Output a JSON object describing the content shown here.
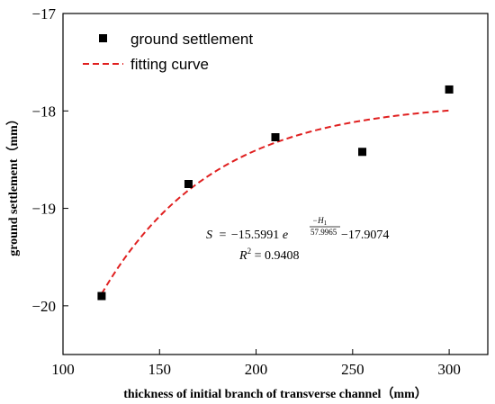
{
  "chart_data": {
    "type": "scatter",
    "xlabel": "thickness of initial branch of transverse channel（mm）",
    "ylabel": "ground settlement（mm）",
    "xlim": [
      100,
      320
    ],
    "ylim": [
      -20.5,
      -17
    ],
    "x_ticks": [
      "100",
      "150",
      "200",
      "250",
      "300"
    ],
    "y_ticks": [
      "−17",
      "−18",
      "−19",
      "−20"
    ],
    "x_tick_values": [
      100,
      150,
      200,
      250,
      300
    ],
    "y_tick_values": [
      -17,
      -18,
      -19,
      -20
    ],
    "legend_position": "top-left",
    "series": [
      {
        "name": "ground settlement",
        "kind": "scatter",
        "color": "#000000",
        "x": [
          120,
          165,
          210,
          255,
          300
        ],
        "y": [
          -19.9,
          -18.75,
          -18.27,
          -18.42,
          -17.78
        ]
      },
      {
        "name": "fitting curve",
        "kind": "line",
        "style": "dashed",
        "color": "#e02020",
        "equation": {
          "a": -15.5991,
          "t": 57.9965,
          "c": -17.9074
        },
        "x_range": [
          120,
          300
        ]
      }
    ],
    "annotation": {
      "lhs": "S",
      "eq_sign": "=",
      "coef": "−15.5991",
      "base": "e",
      "exp_num": "−H",
      "exp_num_sub": "1",
      "exp_den": "57.9965",
      "const": "−17.9074",
      "r2_label": "R",
      "r2_sup": "2",
      "r2_eq": " = 0.9408"
    }
  }
}
